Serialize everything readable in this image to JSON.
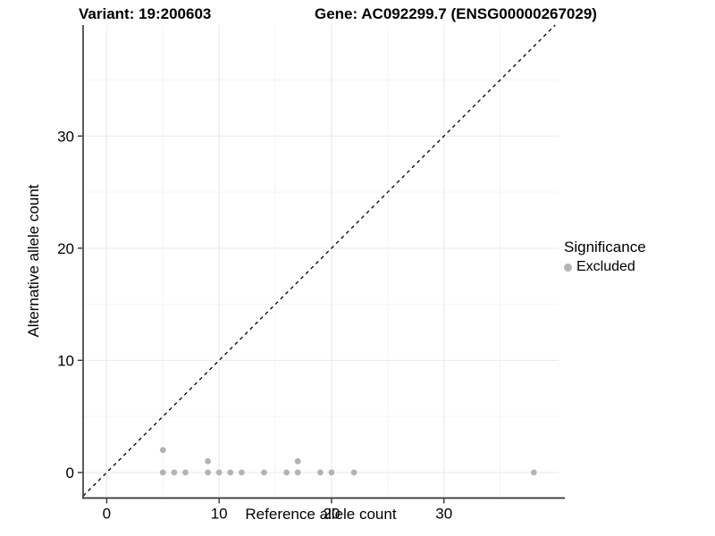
{
  "chart_data": {
    "type": "scatter",
    "titles": {
      "variant": "Variant: 19:200603",
      "gene": "Gene: AC092299.7 (ENSG00000267029)"
    },
    "xlabel": "Reference allele count",
    "ylabel": "Alternative allele count",
    "xlim": [
      -2.1,
      40.2
    ],
    "ylim": [
      -2.2,
      39.9
    ],
    "x_ticks": [
      0,
      10,
      20,
      30
    ],
    "y_ticks": [
      0,
      10,
      20,
      30
    ],
    "x_minor_gridlines": [
      5,
      15,
      25,
      35
    ],
    "y_minor_gridlines": [
      5,
      15,
      25,
      35
    ],
    "grid": "major and minor, light gray on white",
    "identity_line": {
      "from": [
        -2.1,
        -2.1
      ],
      "to": [
        39.9,
        39.9
      ],
      "style": "dashed",
      "color": "#000000"
    },
    "legend": {
      "title": "Significance",
      "position": "right",
      "items": [
        {
          "label": "Excluded",
          "color": "#b3b3b3"
        }
      ]
    },
    "series": [
      {
        "name": "Excluded",
        "color": "#b3b3b3",
        "marker": "circle",
        "points": [
          [
            5,
            0
          ],
          [
            5,
            2
          ],
          [
            6,
            0
          ],
          [
            7,
            0
          ],
          [
            9,
            0
          ],
          [
            9,
            1
          ],
          [
            10,
            0
          ],
          [
            11,
            0
          ],
          [
            12,
            0
          ],
          [
            14,
            0
          ],
          [
            16,
            0
          ],
          [
            17,
            0
          ],
          [
            17,
            1
          ],
          [
            19,
            0
          ],
          [
            20,
            0
          ],
          [
            22,
            0
          ],
          [
            38,
            0
          ]
        ]
      }
    ],
    "colors": {
      "background": "#ffffff",
      "grid_major": "#e9e9e9",
      "grid_minor": "#f4f4f4",
      "axis_line": "#333333",
      "text": "#000000"
    }
  }
}
